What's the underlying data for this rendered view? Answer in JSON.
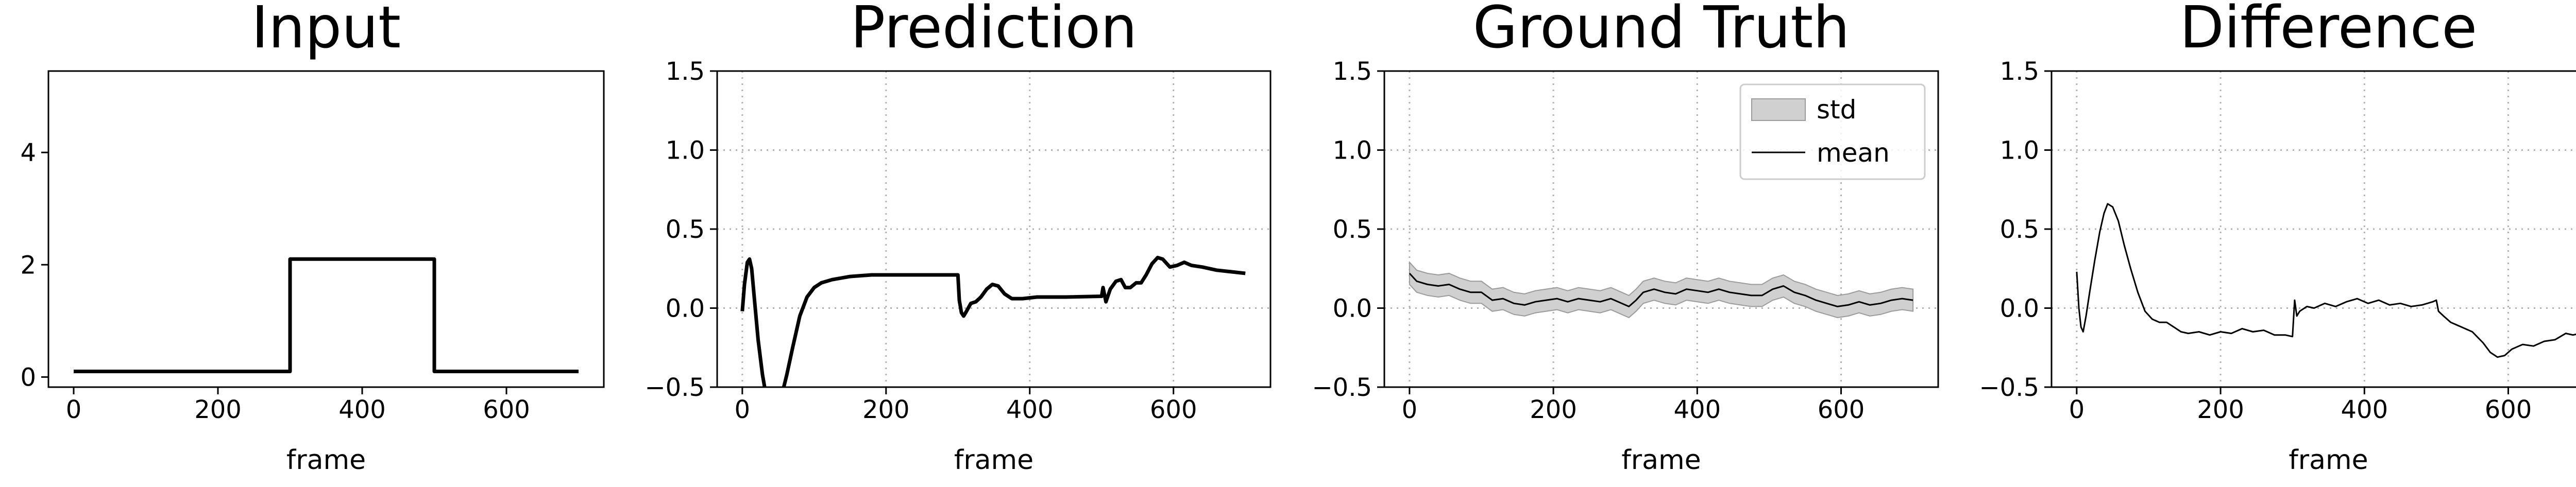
{
  "chart_data": [
    {
      "type": "line",
      "title": "Input",
      "xlabel": "frame",
      "ylabel": "",
      "xlim": [
        -35,
        735
      ],
      "ylim": [
        -0.18,
        5.45
      ],
      "xticks": [
        0,
        200,
        400,
        600
      ],
      "yticks": [
        0,
        2,
        4
      ],
      "ytick_labels": [
        "0",
        "2",
        "4"
      ],
      "grid": false,
      "legend": null,
      "series": [
        {
          "name": "",
          "color": "#000000",
          "points": [
            [
              0,
              0.1
            ],
            [
              300,
              0.1
            ],
            [
              300,
              2.1
            ],
            [
              500,
              2.1
            ],
            [
              500,
              0.1
            ],
            [
              700,
              0.1
            ]
          ]
        }
      ]
    },
    {
      "type": "line",
      "title": "Prediction",
      "xlabel": "frame",
      "ylabel": "",
      "xlim": [
        -35,
        735
      ],
      "ylim": [
        -0.5,
        1.5
      ],
      "xticks": [
        0,
        200,
        400,
        600
      ],
      "yticks": [
        -0.5,
        0.0,
        0.5,
        1.0,
        1.5
      ],
      "ytick_labels": [
        "−0.5",
        "0.0",
        "0.5",
        "1.0",
        "1.5"
      ],
      "grid": true,
      "legend": null,
      "series": [
        {
          "name": "",
          "color": "#000000",
          "points": [
            [
              0,
              -0.02
            ],
            [
              3,
              0.15
            ],
            [
              7,
              0.29
            ],
            [
              10,
              0.31
            ],
            [
              13,
              0.25
            ],
            [
              17,
              0.05
            ],
            [
              22,
              -0.2
            ],
            [
              28,
              -0.42
            ],
            [
              33,
              -0.55
            ],
            [
              40,
              -0.62
            ],
            [
              48,
              -0.62
            ],
            [
              55,
              -0.55
            ],
            [
              62,
              -0.42
            ],
            [
              70,
              -0.25
            ],
            [
              80,
              -0.05
            ],
            [
              90,
              0.07
            ],
            [
              100,
              0.13
            ],
            [
              110,
              0.16
            ],
            [
              125,
              0.18
            ],
            [
              150,
              0.2
            ],
            [
              180,
              0.21
            ],
            [
              240,
              0.21
            ],
            [
              300,
              0.21
            ],
            [
              302,
              0.05
            ],
            [
              305,
              -0.03
            ],
            [
              308,
              -0.05
            ],
            [
              312,
              -0.02
            ],
            [
              318,
              0.03
            ],
            [
              325,
              0.04
            ],
            [
              332,
              0.07
            ],
            [
              340,
              0.12
            ],
            [
              348,
              0.15
            ],
            [
              356,
              0.14
            ],
            [
              365,
              0.09
            ],
            [
              375,
              0.06
            ],
            [
              390,
              0.06
            ],
            [
              410,
              0.07
            ],
            [
              450,
              0.07
            ],
            [
              500,
              0.075
            ],
            [
              502,
              0.13
            ],
            [
              506,
              0.04
            ],
            [
              512,
              0.12
            ],
            [
              520,
              0.17
            ],
            [
              527,
              0.18
            ],
            [
              533,
              0.13
            ],
            [
              540,
              0.13
            ],
            [
              548,
              0.16
            ],
            [
              555,
              0.16
            ],
            [
              562,
              0.21
            ],
            [
              570,
              0.28
            ],
            [
              578,
              0.32
            ],
            [
              585,
              0.31
            ],
            [
              595,
              0.26
            ],
            [
              605,
              0.27
            ],
            [
              615,
              0.29
            ],
            [
              625,
              0.27
            ],
            [
              640,
              0.26
            ],
            [
              660,
              0.24
            ],
            [
              680,
              0.23
            ],
            [
              700,
              0.22
            ]
          ]
        }
      ]
    },
    {
      "type": "line",
      "title": "Ground Truth",
      "xlabel": "frame",
      "ylabel": "",
      "xlim": [
        -35,
        735
      ],
      "ylim": [
        -0.5,
        1.5
      ],
      "xticks": [
        0,
        200,
        400,
        600
      ],
      "yticks": [
        -0.5,
        0.0,
        0.5,
        1.0,
        1.5
      ],
      "ytick_labels": [
        "−0.5",
        "0.0",
        "0.5",
        "1.0",
        "1.5"
      ],
      "grid": true,
      "legend": {
        "position": "upper-right",
        "entries": [
          "std",
          "mean"
        ]
      },
      "band": {
        "name": "std",
        "color": "#d0d0d0",
        "halfwidth": 0.07
      },
      "series": [
        {
          "name": "mean",
          "color": "#000000",
          "points": [
            [
              0,
              0.22
            ],
            [
              10,
              0.17
            ],
            [
              25,
              0.15
            ],
            [
              40,
              0.14
            ],
            [
              55,
              0.15
            ],
            [
              70,
              0.12
            ],
            [
              85,
              0.1
            ],
            [
              100,
              0.1
            ],
            [
              115,
              0.05
            ],
            [
              130,
              0.06
            ],
            [
              145,
              0.03
            ],
            [
              160,
              0.02
            ],
            [
              175,
              0.04
            ],
            [
              190,
              0.05
            ],
            [
              205,
              0.06
            ],
            [
              220,
              0.04
            ],
            [
              235,
              0.06
            ],
            [
              250,
              0.05
            ],
            [
              265,
              0.04
            ],
            [
              280,
              0.06
            ],
            [
              295,
              0.03
            ],
            [
              305,
              0.01
            ],
            [
              315,
              0.05
            ],
            [
              325,
              0.1
            ],
            [
              340,
              0.12
            ],
            [
              355,
              0.1
            ],
            [
              370,
              0.09
            ],
            [
              385,
              0.12
            ],
            [
              400,
              0.11
            ],
            [
              415,
              0.1
            ],
            [
              430,
              0.12
            ],
            [
              445,
              0.1
            ],
            [
              460,
              0.09
            ],
            [
              475,
              0.08
            ],
            [
              490,
              0.08
            ],
            [
              505,
              0.12
            ],
            [
              520,
              0.14
            ],
            [
              535,
              0.1
            ],
            [
              550,
              0.08
            ],
            [
              565,
              0.05
            ],
            [
              580,
              0.03
            ],
            [
              595,
              0.01
            ],
            [
              610,
              0.02
            ],
            [
              625,
              0.04
            ],
            [
              640,
              0.02
            ],
            [
              655,
              0.03
            ],
            [
              670,
              0.05
            ],
            [
              685,
              0.06
            ],
            [
              700,
              0.05
            ]
          ]
        }
      ]
    },
    {
      "type": "line",
      "title": "Difference",
      "xlabel": "frame",
      "ylabel": "",
      "xlim": [
        -35,
        735
      ],
      "ylim": [
        -0.5,
        1.5
      ],
      "xticks": [
        0,
        200,
        400,
        600
      ],
      "yticks": [
        -0.5,
        0.0,
        0.5,
        1.0,
        1.5
      ],
      "ytick_labels": [
        "−0.5",
        "0.0",
        "0.5",
        "1.0",
        "1.5"
      ],
      "grid": true,
      "legend": null,
      "series": [
        {
          "name": "",
          "color": "#000000",
          "points": [
            [
              0,
              0.23
            ],
            [
              3,
              0.0
            ],
            [
              6,
              -0.12
            ],
            [
              9,
              -0.15
            ],
            [
              13,
              -0.05
            ],
            [
              18,
              0.1
            ],
            [
              25,
              0.3
            ],
            [
              32,
              0.48
            ],
            [
              38,
              0.6
            ],
            [
              43,
              0.66
            ],
            [
              50,
              0.64
            ],
            [
              58,
              0.55
            ],
            [
              66,
              0.4
            ],
            [
              75,
              0.25
            ],
            [
              85,
              0.1
            ],
            [
              95,
              -0.02
            ],
            [
              105,
              -0.07
            ],
            [
              115,
              -0.09
            ],
            [
              125,
              -0.09
            ],
            [
              135,
              -0.12
            ],
            [
              145,
              -0.15
            ],
            [
              155,
              -0.16
            ],
            [
              170,
              -0.15
            ],
            [
              185,
              -0.17
            ],
            [
              200,
              -0.15
            ],
            [
              215,
              -0.16
            ],
            [
              230,
              -0.13
            ],
            [
              245,
              -0.15
            ],
            [
              260,
              -0.14
            ],
            [
              275,
              -0.17
            ],
            [
              290,
              -0.17
            ],
            [
              300,
              -0.18
            ],
            [
              303,
              0.05
            ],
            [
              306,
              -0.05
            ],
            [
              310,
              -0.02
            ],
            [
              320,
              0.01
            ],
            [
              330,
              0.0
            ],
            [
              345,
              0.03
            ],
            [
              360,
              0.01
            ],
            [
              375,
              0.04
            ],
            [
              390,
              0.06
            ],
            [
              405,
              0.03
            ],
            [
              420,
              0.05
            ],
            [
              435,
              0.02
            ],
            [
              450,
              0.03
            ],
            [
              465,
              0.01
            ],
            [
              480,
              0.02
            ],
            [
              495,
              0.04
            ],
            [
              500,
              0.05
            ],
            [
              503,
              -0.02
            ],
            [
              510,
              -0.05
            ],
            [
              520,
              -0.09
            ],
            [
              535,
              -0.12
            ],
            [
              550,
              -0.15
            ],
            [
              565,
              -0.22
            ],
            [
              575,
              -0.28
            ],
            [
              585,
              -0.31
            ],
            [
              595,
              -0.3
            ],
            [
              605,
              -0.26
            ],
            [
              620,
              -0.23
            ],
            [
              635,
              -0.24
            ],
            [
              650,
              -0.21
            ],
            [
              665,
              -0.2
            ],
            [
              680,
              -0.16
            ],
            [
              690,
              -0.17
            ],
            [
              700,
              -0.16
            ]
          ]
        }
      ]
    }
  ]
}
